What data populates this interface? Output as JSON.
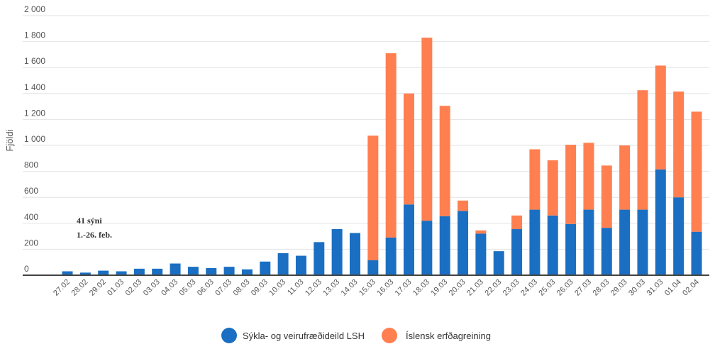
{
  "chart_data": {
    "type": "bar",
    "stacked": true,
    "ylabel": "Fjöldi",
    "ylim": [
      0,
      2000
    ],
    "yticks": [
      0,
      200,
      400,
      600,
      800,
      1000,
      1200,
      1400,
      1600,
      1800,
      2000
    ],
    "ytick_labels": [
      "0",
      "200",
      "400",
      "600",
      "800",
      "1 000",
      "1 200",
      "1 400",
      "1 600",
      "1 800",
      "2 000"
    ],
    "grid": true,
    "legend_position": "bottom",
    "annotation": [
      "41 sýni",
      "1.-26. feb."
    ],
    "categories": [
      "27.02",
      "28.02",
      "29.02",
      "01.03",
      "02.03",
      "03.03",
      "04.03",
      "05.03",
      "06.03",
      "07.03",
      "08.03",
      "09.03",
      "10.03",
      "11.03",
      "12.03",
      "13.03",
      "14.03",
      "15.03",
      "16.03",
      "17.03",
      "18.03",
      "19.03",
      "20.03",
      "21.03",
      "22.03",
      "23.03",
      "24.03",
      "25.03",
      "26.03",
      "27.03",
      "28.03",
      "29.03",
      "30.03",
      "31.03",
      "01.04",
      "02.04"
    ],
    "series": [
      {
        "name": "Sýkla- og veirufræðideild LSH",
        "color": "#1b6fc2",
        "values": [
          30,
          20,
          35,
          30,
          50,
          50,
          90,
          65,
          55,
          65,
          45,
          105,
          170,
          150,
          255,
          355,
          325,
          115,
          290,
          545,
          420,
          455,
          495,
          320,
          185,
          355,
          505,
          460,
          395,
          505,
          365,
          505,
          505,
          815,
          600,
          335
        ]
      },
      {
        "name": "Íslensk erfðagreining",
        "color": "#ff7f50",
        "values": [
          0,
          0,
          0,
          0,
          0,
          0,
          0,
          0,
          0,
          0,
          0,
          0,
          0,
          0,
          0,
          0,
          0,
          960,
          1420,
          855,
          1410,
          850,
          80,
          25,
          0,
          105,
          465,
          425,
          610,
          515,
          480,
          495,
          920,
          800,
          815,
          925
        ]
      }
    ]
  }
}
